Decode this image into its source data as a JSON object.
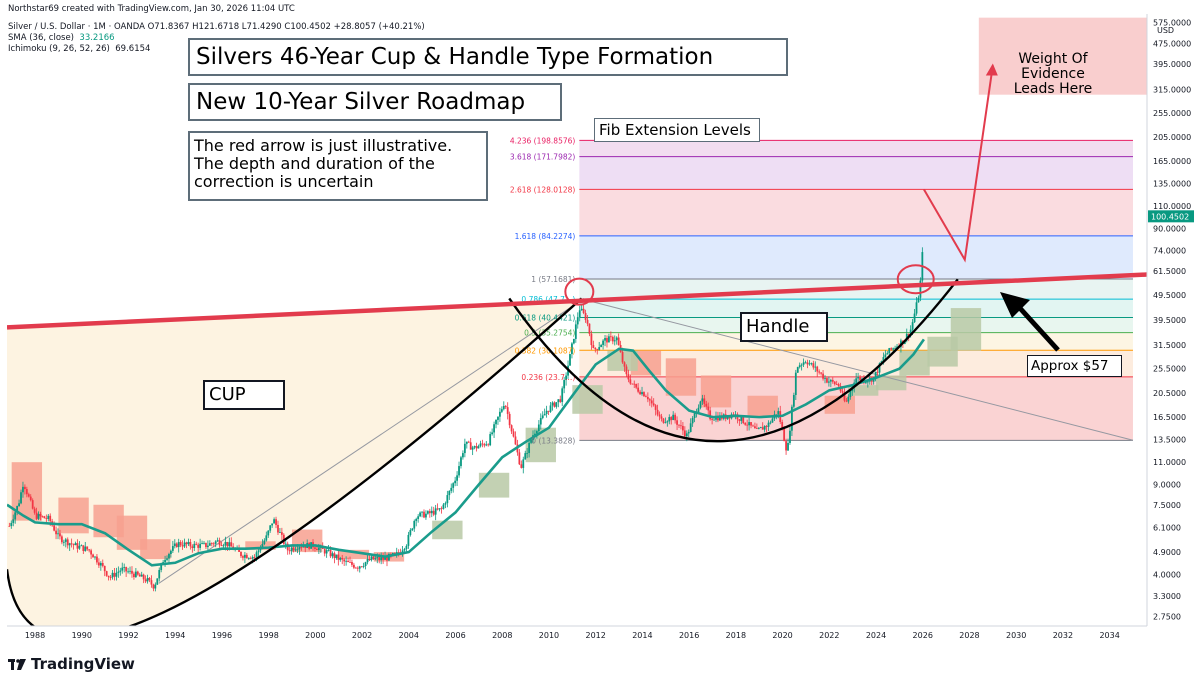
{
  "header": {
    "line1": "Silver / U.S. Dollar · 1M · OANDA  O71.8367  H121.6718  L71.4290  C100.4502  +28.8057 (+40.21%)",
    "line2_label": "SMA (36, close)",
    "line2_value": "33.2166",
    "line3_label": "Ichimoku (9, 26, 52, 26)",
    "line3_value": "69.6154",
    "credit": "Northstar69 created with TradingView.com, Jan 30, 2026 11:04 UTC"
  },
  "annotations": {
    "title": "Silvers 46-Year Cup & Handle Type Formation",
    "subtitle": "New 10-Year Silver Roadmap",
    "disclaimer": "The red arrow is just illustrative.\nThe depth and duration of the\ncorrection is uncertain",
    "fib_title": "Fib Extension Levels",
    "cup_label": "CUP",
    "handle_label": "Handle",
    "approx_label": "Approx $57",
    "target_label": "Weight Of\nEvidence\nLeads Here"
  },
  "axis": {
    "currency": "USD",
    "last_price": "100.4502",
    "brand": "TradingView"
  },
  "colors": {
    "candle_up": "#089981",
    "candle_down": "#f23645",
    "sma": "#1a9c8c",
    "cloud_bull": "#b8c9a6",
    "cloud_bear": "#f7a08f",
    "trendline": "#e23b4d",
    "cup_curve": "#000000",
    "target_box": "#f8c9c9",
    "price_tag": "#089981"
  },
  "chart_data": {
    "type": "line",
    "title": "Silvers 46-Year Cup & Handle Type Formation",
    "symbol": "Silver / U.S. Dollar · 1M · OANDA",
    "y_scale": "log",
    "yticks": [
      2.75,
      3.3,
      4.0,
      4.9,
      6.1,
      7.5,
      9.0,
      11.0,
      13.5,
      16.5,
      20.5,
      25.5,
      31.5,
      39.5,
      49.5,
      61.5,
      74.0,
      90.0,
      110.0,
      135.0,
      165.0,
      205.0,
      255.0,
      315.0,
      395.0,
      475.0,
      575.0
    ],
    "ytick_labels": [
      "2.7500",
      "3.3000",
      "4.0000",
      "4.9000",
      "6.1000",
      "7.5000",
      "9.0000",
      "11.0000",
      "13.5000",
      "16.5000",
      "20.5000",
      "25.5000",
      "31.5000",
      "39.5000",
      "49.5000",
      "61.5000",
      "74.0000",
      "90.0000",
      "110.0000",
      "135.0000",
      "165.0000",
      "205.0000",
      "255.0000",
      "315.0000",
      "395.0000",
      "475.0000",
      "575.0000"
    ],
    "xticks": [
      "1988",
      "1990",
      "1992",
      "1994",
      "1996",
      "1998",
      "2000",
      "2002",
      "2004",
      "2006",
      "2008",
      "2010",
      "2012",
      "2014",
      "2016",
      "2018",
      "2020",
      "2022",
      "2024",
      "2026",
      "2028",
      "2030",
      "2032",
      "2034"
    ],
    "xlim": [
      1986.8,
      2035.6
    ],
    "ylim": [
      2.52,
      620
    ],
    "series": [
      {
        "name": "Silver / U.S. Dollar",
        "points": [
          [
            1986.9,
            6.2
          ],
          [
            1987.3,
            7.6
          ],
          [
            1987.5,
            9.2
          ],
          [
            1988.0,
            6.8
          ],
          [
            1988.6,
            6.6
          ],
          [
            1989.0,
            5.6
          ],
          [
            1989.7,
            5.2
          ],
          [
            1990.3,
            5.0
          ],
          [
            1990.8,
            4.4
          ],
          [
            1991.2,
            3.9
          ],
          [
            1991.7,
            4.2
          ],
          [
            1992.3,
            4.0
          ],
          [
            1992.8,
            3.8
          ],
          [
            1993.1,
            3.6
          ],
          [
            1993.5,
            4.6
          ],
          [
            1994.1,
            5.3
          ],
          [
            1994.7,
            5.2
          ],
          [
            1995.3,
            5.2
          ],
          [
            1995.8,
            5.4
          ],
          [
            1996.2,
            5.3
          ],
          [
            1996.8,
            4.8
          ],
          [
            1997.4,
            4.7
          ],
          [
            1997.9,
            5.6
          ],
          [
            1998.2,
            6.6
          ],
          [
            1998.8,
            5.0
          ],
          [
            1999.3,
            5.2
          ],
          [
            1999.9,
            5.2
          ],
          [
            2000.5,
            4.9
          ],
          [
            2001.2,
            4.5
          ],
          [
            2001.8,
            4.3
          ],
          [
            2002.4,
            4.6
          ],
          [
            2002.9,
            4.6
          ],
          [
            2003.5,
            4.8
          ],
          [
            2003.9,
            5.3
          ],
          [
            2004.3,
            6.8
          ],
          [
            2004.8,
            6.9
          ],
          [
            2005.4,
            7.2
          ],
          [
            2006.0,
            9.5
          ],
          [
            2006.4,
            13.0
          ],
          [
            2006.8,
            12.5
          ],
          [
            2007.4,
            13.2
          ],
          [
            2008.1,
            19.0
          ],
          [
            2008.8,
            10.5
          ],
          [
            2009.3,
            14.0
          ],
          [
            2009.9,
            17.5
          ],
          [
            2010.5,
            19.5
          ],
          [
            2010.9,
            28.5
          ],
          [
            2011.3,
            44.0
          ],
          [
            2011.6,
            40.0
          ],
          [
            2011.9,
            30.0
          ],
          [
            2012.4,
            33.0
          ],
          [
            2012.9,
            33.5
          ],
          [
            2013.3,
            24.0
          ],
          [
            2013.7,
            21.5
          ],
          [
            2014.2,
            20.0
          ],
          [
            2014.8,
            16.0
          ],
          [
            2015.3,
            16.5
          ],
          [
            2015.9,
            14.0
          ],
          [
            2016.5,
            19.5
          ],
          [
            2016.9,
            16.5
          ],
          [
            2017.5,
            16.5
          ],
          [
            2017.9,
            17.0
          ],
          [
            2018.5,
            15.5
          ],
          [
            2018.9,
            14.5
          ],
          [
            2019.4,
            15.5
          ],
          [
            2019.8,
            17.5
          ],
          [
            2020.2,
            12.0
          ],
          [
            2020.6,
            26.0
          ],
          [
            2021.0,
            27.5
          ],
          [
            2021.5,
            25.0
          ],
          [
            2021.9,
            23.0
          ],
          [
            2022.4,
            22.0
          ],
          [
            2022.7,
            18.5
          ],
          [
            2023.1,
            23.5
          ],
          [
            2023.6,
            23.0
          ],
          [
            2023.9,
            23.5
          ],
          [
            2024.4,
            29.0
          ],
          [
            2024.8,
            31.0
          ],
          [
            2025.2,
            33.0
          ],
          [
            2025.5,
            36.5
          ],
          [
            2025.8,
            48.0
          ],
          [
            2025.95,
            60.0
          ],
          [
            2026.05,
            100.45
          ]
        ]
      },
      {
        "name": "SMA (36, close)",
        "points": [
          [
            1986.8,
            7.5
          ],
          [
            1987.5,
            6.8
          ],
          [
            1988.0,
            6.4
          ],
          [
            1989.0,
            6.3
          ],
          [
            1990.0,
            6.3
          ],
          [
            1991.0,
            5.8
          ],
          [
            1992.0,
            5.0
          ],
          [
            1993.0,
            4.35
          ],
          [
            1994.0,
            4.45
          ],
          [
            1995.0,
            4.85
          ],
          [
            1996.0,
            5.05
          ],
          [
            1997.0,
            5.05
          ],
          [
            1998.0,
            5.1
          ],
          [
            1999.0,
            5.2
          ],
          [
            2000.0,
            5.2
          ],
          [
            2001.0,
            5.0
          ],
          [
            2002.0,
            4.85
          ],
          [
            2003.0,
            4.7
          ],
          [
            2004.0,
            4.9
          ],
          [
            2005.0,
            5.9
          ],
          [
            2006.0,
            7.0
          ],
          [
            2007.0,
            9.0
          ],
          [
            2008.0,
            11.5
          ],
          [
            2009.0,
            13.2
          ],
          [
            2010.0,
            15.0
          ],
          [
            2011.0,
            20.0
          ],
          [
            2012.0,
            26.5
          ],
          [
            2013.0,
            30.5
          ],
          [
            2013.6,
            30.0
          ],
          [
            2014.3,
            25.0
          ],
          [
            2015.0,
            21.0
          ],
          [
            2016.0,
            17.5
          ],
          [
            2017.0,
            16.5
          ],
          [
            2018.0,
            16.7
          ],
          [
            2019.0,
            16.5
          ],
          [
            2020.0,
            16.7
          ],
          [
            2021.0,
            18.5
          ],
          [
            2022.0,
            21.0
          ],
          [
            2023.0,
            22.0
          ],
          [
            2024.0,
            23.5
          ],
          [
            2025.0,
            25.5
          ],
          [
            2025.6,
            29.0
          ],
          [
            2026.05,
            33.2
          ]
        ]
      }
    ],
    "fib_levels": [
      {
        "ratio": "0",
        "value": 13.3828,
        "label": "0 (13.3828)"
      },
      {
        "ratio": "0.236",
        "value": 23.7,
        "label": "0.236 (23.7…)"
      },
      {
        "ratio": "0.382",
        "value": 30.1087,
        "label": "0.382 (30.1087)"
      },
      {
        "ratio": "0.5",
        "value": 35.2754,
        "label": "0.5 (35.2754)"
      },
      {
        "ratio": "0.618",
        "value": 40.4421,
        "label": "0.618 (40.4421)"
      },
      {
        "ratio": "0.786",
        "value": 47.7,
        "label": "0.786 (47.7…)"
      },
      {
        "ratio": "1",
        "value": 57.1681,
        "label": "1 (57.1681)"
      },
      {
        "ratio": "1.618",
        "value": 84.2274,
        "label": "1.618 (84.2274)"
      },
      {
        "ratio": "2.618",
        "value": 128.0128,
        "label": "2.618 (128.0128)"
      },
      {
        "ratio": "3.618",
        "value": 171.7982,
        "label": "3.618 (171.7982)"
      },
      {
        "ratio": "4.236",
        "value": 198.8576,
        "label": "4.236 (198.8576)"
      }
    ],
    "fib_range_x": [
      2011.3,
      2035.0
    ],
    "trendline": [
      [
        1986.8,
        37.0
      ],
      [
        2035.6,
        59.5
      ]
    ],
    "cup_curve": {
      "x_start": 1986.8,
      "x_bottom": 1993.5,
      "x_end": 2011.4,
      "y_start": 4.2,
      "y_bottom": 2.85,
      "y_end": 48.0
    },
    "handle_curve": {
      "x_start": 2008.3,
      "x_bottom": 2017.5,
      "x_end": 2027.5,
      "y_start": 48.0,
      "y_bottom": 13.3,
      "y_end": 57.0
    },
    "illustrative_arrow": [
      [
        2026.05,
        128.0
      ],
      [
        2027.8,
        68.0
      ],
      [
        2029.0,
        390.0
      ]
    ],
    "target_zone": {
      "x": [
        2028.4,
        2035.6
      ],
      "y": [
        300,
        600
      ]
    },
    "last_price": 100.4502
  }
}
